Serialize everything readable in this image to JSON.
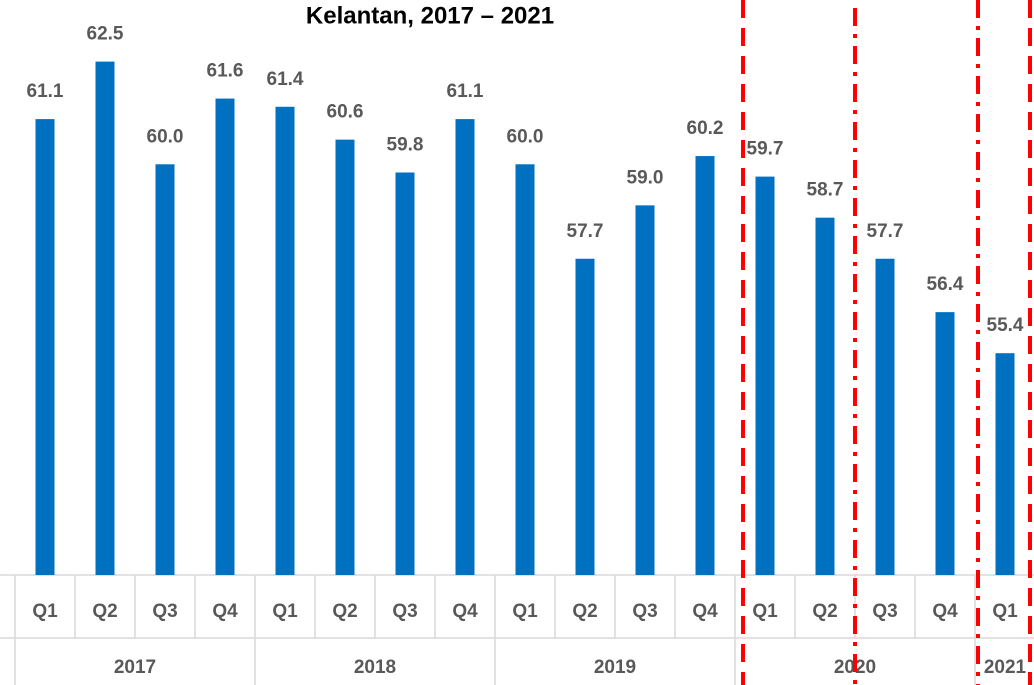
{
  "chart_data": {
    "type": "bar",
    "title": "Kelantan, 2017 – 2021",
    "categories": [
      "Q1",
      "Q2",
      "Q3",
      "Q4",
      "Q1",
      "Q2",
      "Q3",
      "Q4",
      "Q1",
      "Q2",
      "Q3",
      "Q4",
      "Q1",
      "Q2",
      "Q3",
      "Q4",
      "Q1"
    ],
    "years": [
      "2017",
      "2018",
      "2019",
      "2020",
      "2021"
    ],
    "values": [
      61.1,
      62.5,
      60.0,
      61.6,
      61.4,
      60.6,
      59.8,
      61.1,
      60.0,
      57.7,
      59.0,
      60.2,
      59.7,
      58.7,
      57.7,
      56.4,
      55.4
    ],
    "value_labels": [
      "61.1",
      "62.5",
      "60.0",
      "61.6",
      "61.4",
      "60.6",
      "59.8",
      "61.1",
      "60.0",
      "57.7",
      "59.0",
      "60.2",
      "59.7",
      "58.7",
      "57.7",
      "56.4",
      "55.4"
    ],
    "color": "#0070c0",
    "ylim": [
      50,
      64
    ]
  }
}
